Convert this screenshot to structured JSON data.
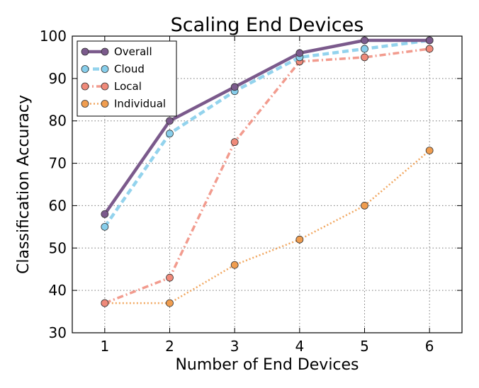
{
  "chart_data": {
    "type": "line",
    "title": "Scaling End Devices",
    "xlabel": "Number of End Devices",
    "ylabel": "Classification Accuracy",
    "x": [
      1,
      2,
      3,
      4,
      5,
      6
    ],
    "xlim": [
      0.5,
      6.5
    ],
    "ylim": [
      30,
      100
    ],
    "xticks": [
      "1",
      "2",
      "3",
      "4",
      "5",
      "6"
    ],
    "yticks": [
      "30",
      "40",
      "50",
      "60",
      "70",
      "80",
      "90",
      "100"
    ],
    "grid": true,
    "legend_position": "top-left",
    "series": [
      {
        "name": "Overall",
        "values": [
          58,
          80,
          88,
          96,
          99,
          99
        ],
        "color": "#7b5a8c",
        "line_style": "solid"
      },
      {
        "name": "Cloud",
        "values": [
          55,
          77,
          87,
          95,
          97,
          99
        ],
        "color": "#87ceeb",
        "line_style": "dashed"
      },
      {
        "name": "Local",
        "values": [
          37,
          43,
          75,
          94,
          95,
          97
        ],
        "color": "#f08a7a",
        "line_style": "dashdot"
      },
      {
        "name": "Individual",
        "values": [
          37,
          37,
          46,
          52,
          60,
          73
        ],
        "color": "#f09d4f",
        "line_style": "dotted"
      }
    ]
  }
}
